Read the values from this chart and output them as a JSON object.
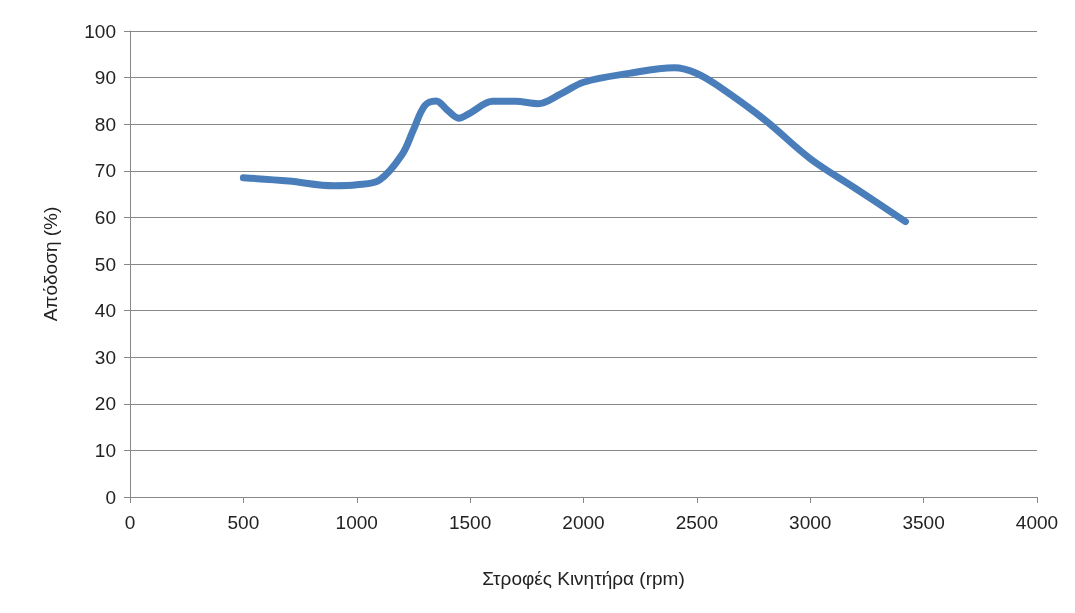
{
  "chart_data": {
    "type": "line",
    "xlabel": "Στροφές Κινητήρα (rpm)",
    "ylabel": "Απόδοση (%)",
    "x": [
      500,
      700,
      900,
      1000,
      1100,
      1200,
      1250,
      1300,
      1350,
      1400,
      1450,
      1500,
      1600,
      1700,
      1800,
      1900,
      2000,
      2200,
      2400,
      2500,
      2600,
      2800,
      3000,
      3200,
      3420
    ],
    "series": [
      {
        "color": "#4a7ebb",
        "values": [
          68.5,
          67.8,
          66.8,
          67,
          68,
          73.5,
          78.8,
          84,
          85,
          83,
          81.3,
          82.4,
          84.9,
          84.9,
          84.4,
          86.5,
          89,
          90.9,
          92.1,
          90.9,
          88,
          80.9,
          72.6,
          66.2,
          59.1
        ]
      }
    ],
    "xlim": [
      0,
      4000
    ],
    "xticks": [
      0,
      500,
      1000,
      1500,
      2000,
      2500,
      3000,
      3500,
      4000
    ],
    "ylim": [
      0,
      100
    ],
    "yticks": [
      0,
      10,
      20,
      30,
      40,
      50,
      60,
      70,
      80,
      90,
      100
    ],
    "grid": "y",
    "marker": "none",
    "line_style": "solid"
  }
}
